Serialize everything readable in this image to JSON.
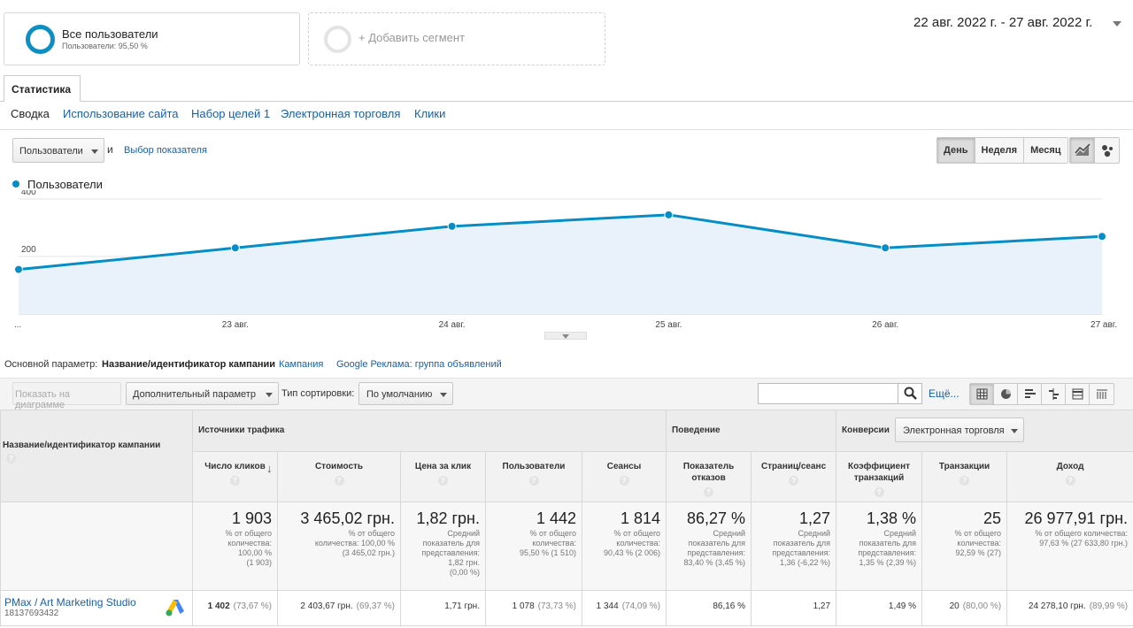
{
  "segments": {
    "all": {
      "title": "Все пользователи",
      "subtitle": "Пользователи: 95,50 %"
    },
    "add": {
      "label": "+ Добавить сегмент"
    }
  },
  "date_range": "22 авг. 2022 г. - 27 авг. 2022 г.",
  "tabs": {
    "main": "Статистика"
  },
  "subnav": [
    "Сводка",
    "Использование сайта",
    "Набор целей 1",
    "Электронная торговля",
    "Клики"
  ],
  "metric_selector": {
    "selected": "Пользователи",
    "and": "и",
    "pick": "Выбор показателя"
  },
  "periods": [
    "День",
    "Неделя",
    "Месяц"
  ],
  "icons": {
    "line_chart": "line-chart-icon",
    "motion_chart": "bubble-chart-icon",
    "search": "search-icon",
    "table_views": [
      "table-view-icon",
      "pie-view-icon",
      "bar-view-icon",
      "comparison-view-icon",
      "pivot-view-icon",
      "term-cloud-icon"
    ]
  },
  "chart_data": {
    "type": "area",
    "series": [
      {
        "name": "Пользователи",
        "values": [
          155,
          230,
          305,
          345,
          230,
          270
        ],
        "color": "#058dc7"
      }
    ],
    "x": [
      "...",
      "23 авг.",
      "24 авг.",
      "25 авг.",
      "26 авг.",
      "27 авг."
    ],
    "y_ticks": [
      {
        "value": 200,
        "label": "200"
      },
      {
        "value": 400,
        "label": "400"
      }
    ],
    "ylim": [
      0,
      400
    ],
    "grid": true,
    "legend": "top-left"
  },
  "dimension": {
    "label": "Основной параметр:",
    "active": "Название/идентификатор кампании",
    "options": [
      "Кампания",
      "Google Реклама: группа объявлений"
    ]
  },
  "toolbar": {
    "plot": "Показать на диаграмме",
    "secondary": "Дополнительный параметр",
    "sort_label": "Тип сортировки:",
    "sort_value": "По умолчанию",
    "more": "Ещё..."
  },
  "table": {
    "first_header": "Название/идентификатор кампании",
    "groups": {
      "traffic": "Источники трафика",
      "behavior": "Поведение",
      "conversions": "Конверсии",
      "conversions_select": "Электронная торговля"
    },
    "columns": [
      "Число кликов",
      "Стоимость",
      "Цена за клик",
      "Пользователи",
      "Сеансы",
      "Показатель отказов",
      "Страниц/сеанс",
      "Коэффициент транзакций",
      "Транзакции",
      "Доход"
    ],
    "totals": [
      {
        "value": "1 903",
        "sub": [
          "% от общего",
          "количества:",
          "100,00 %",
          "(1 903)"
        ]
      },
      {
        "value": "3 465,02 грн.",
        "sub": [
          "% от общего",
          "количества: 100,00 %",
          "(3 465,02 грн.)"
        ]
      },
      {
        "value": "1,82 грн.",
        "sub": [
          "Средний",
          "показатель для",
          "представления:",
          "1,82 грн.",
          "(0,00 %)"
        ]
      },
      {
        "value": "1 442",
        "sub": [
          "% от общего",
          "количества:",
          "95,50 % (1 510)"
        ]
      },
      {
        "value": "1 814",
        "sub": [
          "% от общего",
          "количества:",
          "90,43 % (2 006)"
        ]
      },
      {
        "value": "86,27 %",
        "sub": [
          "Средний",
          "показатель для",
          "представления:",
          "83,40 % (3,45 %)"
        ]
      },
      {
        "value": "1,27",
        "sub": [
          "Средний",
          "показатель для",
          "представления:",
          "1,36 (-6,22 %)"
        ]
      },
      {
        "value": "1,38 %",
        "sub": [
          "Средний",
          "показатель для",
          "представления:",
          "1,35 % (2,39 %)"
        ]
      },
      {
        "value": "25",
        "sub": [
          "% от общего",
          "количества:",
          "92,59 % (27)"
        ]
      },
      {
        "value": "26 977,91 грн.",
        "sub": [
          "% от общего количества:",
          "97,63 % (27 633,80 грн.)"
        ]
      }
    ],
    "rows": [
      {
        "name": "PMax / Art Marketing Studio",
        "id": "18137693432",
        "icon": "google-ads-icon",
        "cells": [
          {
            "value": "1 402",
            "pct": "(73,67 %)"
          },
          {
            "value": "2 403,67 грн.",
            "pct": "(69,37 %)"
          },
          {
            "value": "1,71 грн.",
            "pct": ""
          },
          {
            "value": "1 078",
            "pct": "(73,73 %)"
          },
          {
            "value": "1 344",
            "pct": "(74,09 %)"
          },
          {
            "value": "86,16 %",
            "pct": ""
          },
          {
            "value": "1,27",
            "pct": ""
          },
          {
            "value": "1,49 %",
            "pct": ""
          },
          {
            "value": "20",
            "pct": "(80,00 %)"
          },
          {
            "value": "24 278,10 грн.",
            "pct": "(89,99 %)"
          }
        ]
      }
    ]
  }
}
